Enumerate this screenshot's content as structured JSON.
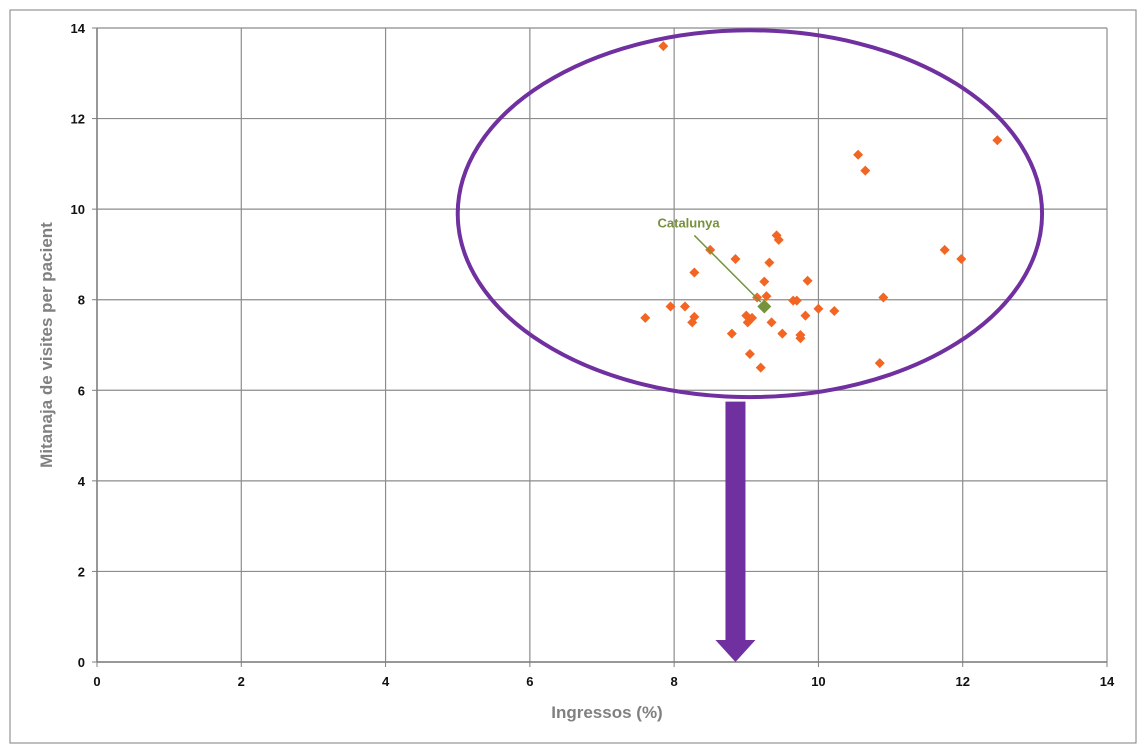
{
  "chart_data": {
    "type": "scatter",
    "title": "",
    "xlabel": "Ingressos (%)",
    "ylabel": "Mitanaja de visites per pacient",
    "xlim": [
      0,
      14
    ],
    "ylim": [
      0,
      14
    ],
    "xticks": [
      0,
      2,
      4,
      6,
      8,
      10,
      12,
      14
    ],
    "yticks": [
      0,
      2,
      4,
      6,
      8,
      10,
      12,
      14
    ],
    "grid": true,
    "legend": "none",
    "series": [
      {
        "name": "",
        "color": "#f26522",
        "marker": "diamond",
        "points": [
          [
            7.85,
            13.6
          ],
          [
            7.6,
            7.6
          ],
          [
            7.95,
            7.85
          ],
          [
            8.15,
            7.85
          ],
          [
            8.25,
            7.5
          ],
          [
            8.28,
            7.62
          ],
          [
            8.28,
            8.6
          ],
          [
            8.5,
            9.1
          ],
          [
            8.8,
            7.25
          ],
          [
            8.85,
            8.9
          ],
          [
            9.0,
            7.65
          ],
          [
            9.02,
            7.5
          ],
          [
            9.05,
            6.8
          ],
          [
            9.08,
            7.6
          ],
          [
            9.15,
            8.05
          ],
          [
            9.2,
            6.5
          ],
          [
            9.25,
            8.4
          ],
          [
            9.28,
            8.08
          ],
          [
            9.32,
            8.82
          ],
          [
            9.35,
            7.5
          ],
          [
            9.42,
            9.42
          ],
          [
            9.45,
            9.32
          ],
          [
            9.5,
            7.25
          ],
          [
            9.65,
            7.98
          ],
          [
            9.7,
            7.98
          ],
          [
            9.75,
            7.15
          ],
          [
            9.75,
            7.22
          ],
          [
            9.82,
            7.65
          ],
          [
            9.85,
            8.42
          ],
          [
            10.0,
            7.8
          ],
          [
            10.22,
            7.75
          ],
          [
            10.55,
            11.2
          ],
          [
            10.65,
            10.85
          ],
          [
            10.85,
            6.6
          ],
          [
            10.9,
            8.05
          ],
          [
            11.75,
            9.1
          ],
          [
            11.98,
            8.9
          ],
          [
            12.48,
            11.52
          ]
        ]
      },
      {
        "name": "",
        "color": "#76923c",
        "marker": "diamond",
        "points": [
          [
            9.25,
            7.85
          ]
        ]
      }
    ],
    "annotations": [
      {
        "text": "Catalunya",
        "text_at": [
          8.2,
          9.6
        ],
        "line_from": [
          8.28,
          9.42
        ],
        "line_to": [
          9.2,
          7.95
        ],
        "color": "#76923c"
      }
    ],
    "overlay": {
      "ellipse": {
        "cx": 9.05,
        "cy": 9.9,
        "rx": 4.05,
        "ry": 4.05,
        "color": "#7030a0"
      },
      "arrow": {
        "x": 8.85,
        "y_from": 5.75,
        "y_to": 0,
        "color": "#7030a0"
      }
    }
  }
}
